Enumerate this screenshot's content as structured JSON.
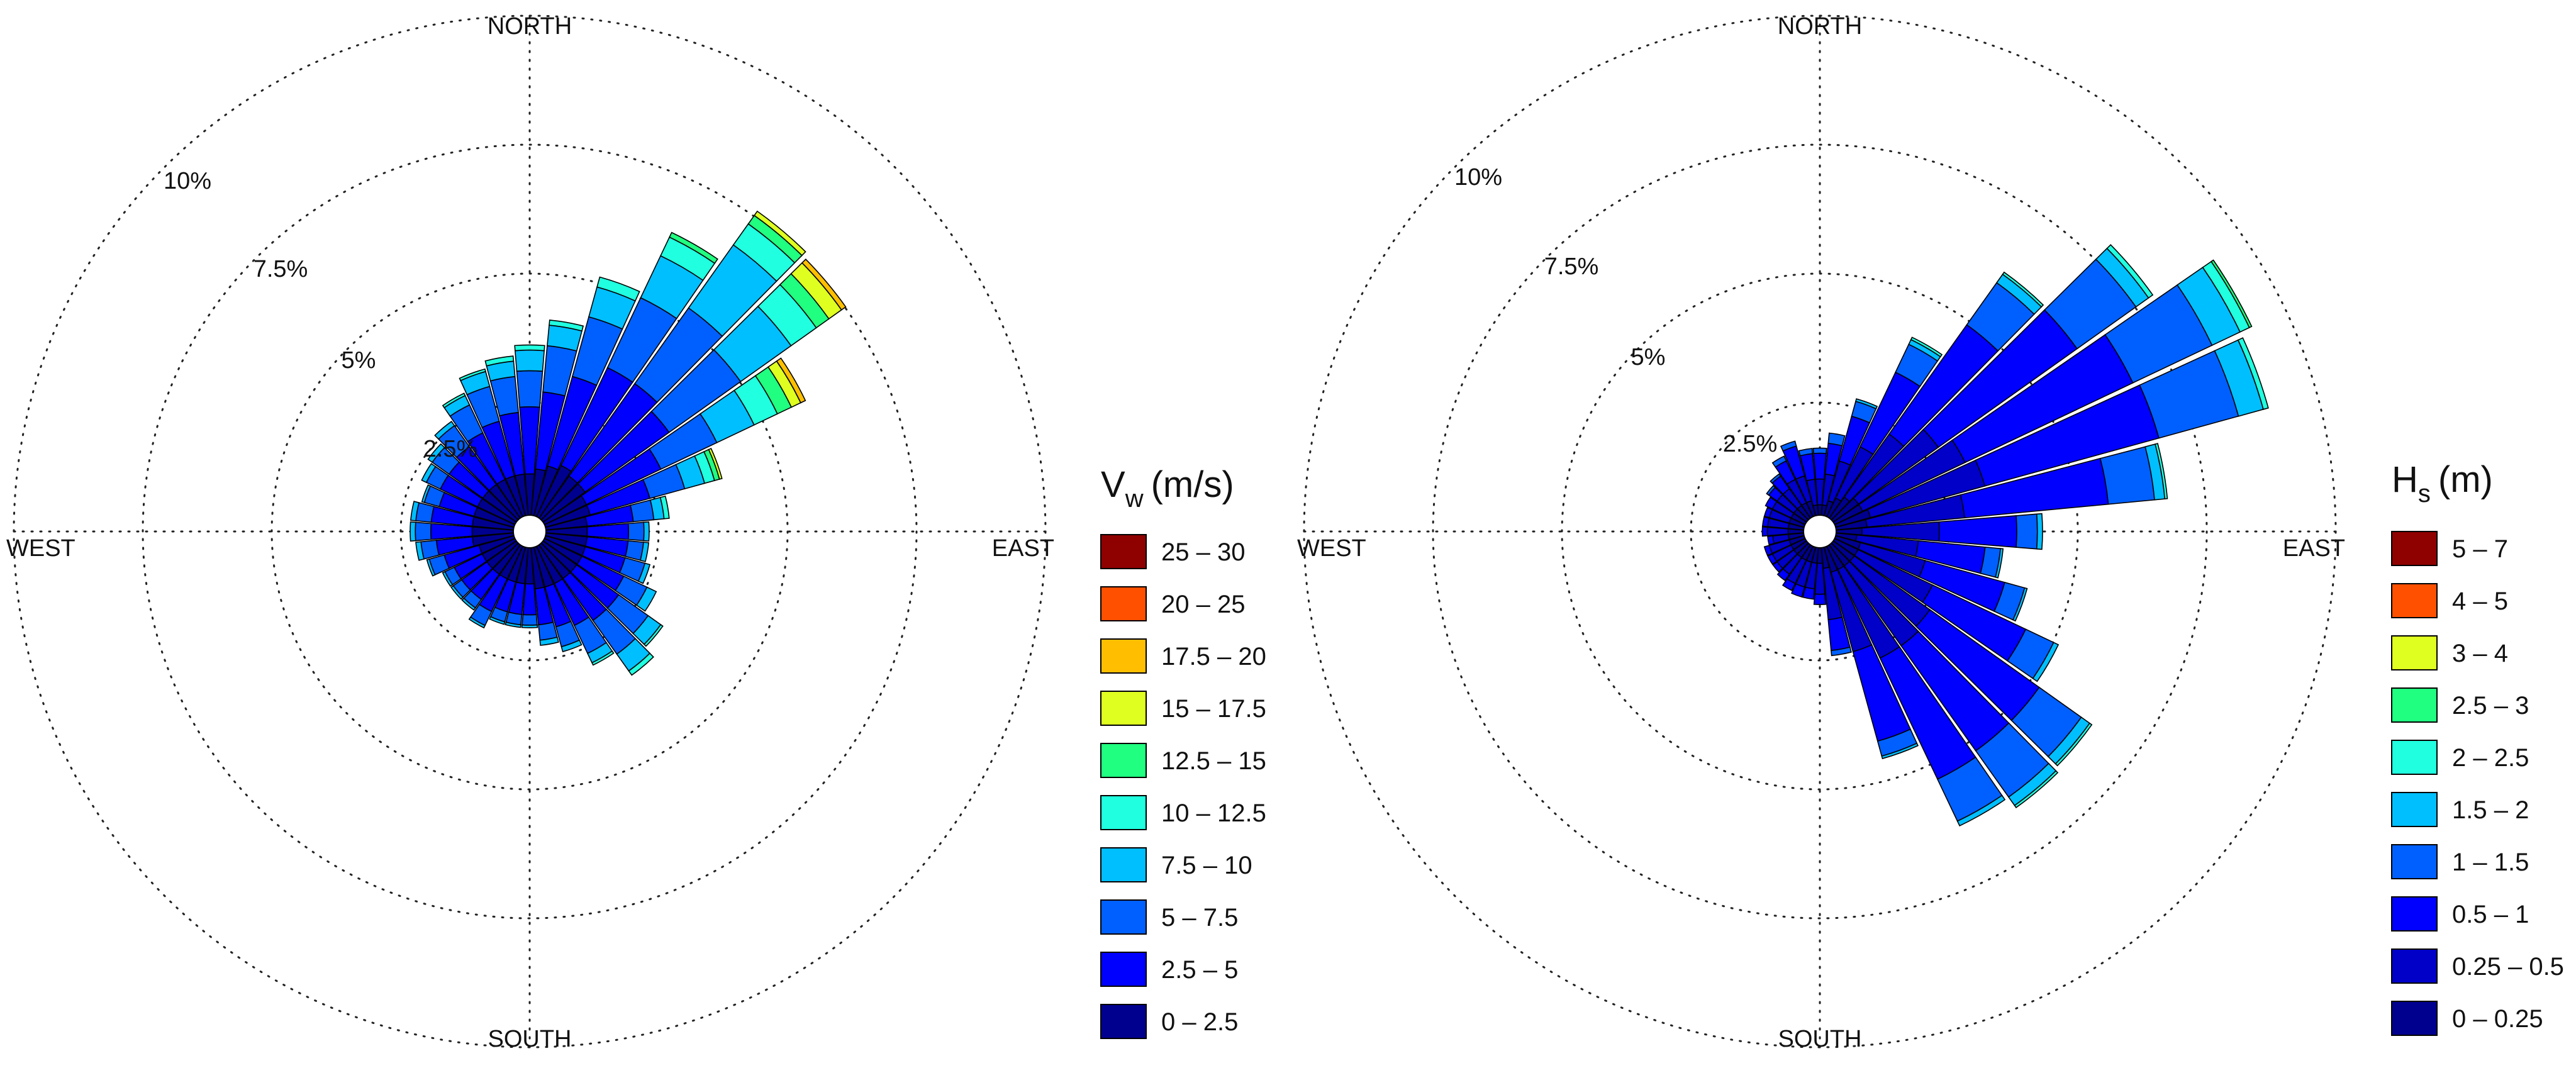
{
  "chart_data": [
    {
      "type": "windrose",
      "directions_deg": [
        0,
        10,
        20,
        30,
        40,
        50,
        60,
        70,
        80,
        90,
        100,
        110,
        120,
        130,
        140,
        150,
        160,
        170,
        180,
        190,
        200,
        210,
        220,
        230,
        240,
        250,
        260,
        270,
        280,
        290,
        300,
        310,
        320,
        330,
        340,
        350
      ],
      "compass_labels": {
        "north": "NORTH",
        "east": "EAST",
        "south": "SOUTH",
        "west": "WEST"
      },
      "radial_axis": {
        "unit": "%",
        "ticks": [
          2.5,
          5,
          7.5,
          10
        ],
        "tick_labels": [
          "2.5%",
          "5%",
          "7.5%",
          "10%"
        ],
        "max": 10,
        "grid": true
      },
      "legend": {
        "title_main": "V",
        "title_sub": "w",
        "title_unit": "(m/s)",
        "placement": "right",
        "bins": [
          {
            "label": "0 – 2.5",
            "color": "#00008F"
          },
          {
            "label": "2.5 – 5",
            "color": "#0000FF"
          },
          {
            "label": "5 – 7.5",
            "color": "#0060FF"
          },
          {
            "label": "7.5 – 10",
            "color": "#00BFFF"
          },
          {
            "label": "10 – 12.5",
            "color": "#20FFDF"
          },
          {
            "label": "12.5 – 15",
            "color": "#20FF80"
          },
          {
            "label": "15 – 17.5",
            "color": "#DFFF20"
          },
          {
            "label": "17.5 – 20",
            "color": "#FFBF00"
          },
          {
            "label": "20 – 25",
            "color": "#FF5000"
          },
          {
            "label": "25 – 30",
            "color": "#8F0000"
          }
        ]
      },
      "frequencies_percent": [
        [
          0.8,
          1.3,
          0.7,
          0.4,
          0.1,
          0,
          0,
          0,
          0,
          0
        ],
        [
          0.9,
          1.5,
          0.9,
          0.4,
          0.1,
          0,
          0,
          0,
          0,
          0
        ],
        [
          1.0,
          1.8,
          1.2,
          0.6,
          0.2,
          0,
          0,
          0,
          0,
          0
        ],
        [
          1.1,
          2.1,
          1.5,
          0.9,
          0.4,
          0.1,
          0,
          0,
          0,
          0
        ],
        [
          1.0,
          2.2,
          1.8,
          1.5,
          0.5,
          0.2,
          0.1,
          0,
          0,
          0
        ],
        [
          1.0,
          2.0,
          1.7,
          1.2,
          0.6,
          0.3,
          0.3,
          0.1,
          0,
          0
        ],
        [
          0.9,
          1.6,
          1.2,
          0.8,
          0.5,
          0.3,
          0.2,
          0.1,
          0,
          0
        ],
        [
          0.9,
          1.2,
          0.7,
          0.4,
          0.2,
          0.1,
          0.05,
          0,
          0,
          0
        ],
        [
          0.8,
          0.9,
          0.4,
          0.2,
          0.1,
          0,
          0,
          0,
          0,
          0
        ],
        [
          0.8,
          0.8,
          0.3,
          0.1,
          0,
          0,
          0,
          0,
          0,
          0
        ],
        [
          0.8,
          0.8,
          0.3,
          0.1,
          0,
          0,
          0,
          0,
          0,
          0
        ],
        [
          0.8,
          0.8,
          0.4,
          0.1,
          0,
          0,
          0,
          0,
          0,
          0
        ],
        [
          0.8,
          0.9,
          0.5,
          0.2,
          0,
          0,
          0,
          0,
          0,
          0
        ],
        [
          0.8,
          1.0,
          0.7,
          0.3,
          0.05,
          0,
          0,
          0,
          0,
          0
        ],
        [
          0.8,
          1.0,
          0.8,
          0.4,
          0.1,
          0,
          0,
          0,
          0,
          0
        ],
        [
          0.8,
          0.9,
          0.6,
          0.2,
          0.05,
          0,
          0,
          0,
          0,
          0
        ],
        [
          0.8,
          0.8,
          0.4,
          0.1,
          0,
          0,
          0,
          0,
          0,
          0
        ],
        [
          0.8,
          0.7,
          0.3,
          0.1,
          0,
          0,
          0,
          0,
          0,
          0
        ],
        [
          0.7,
          0.6,
          0.2,
          0.05,
          0,
          0,
          0,
          0,
          0,
          0
        ],
        [
          0.7,
          0.6,
          0.2,
          0.05,
          0,
          0,
          0,
          0,
          0,
          0
        ],
        [
          0.7,
          0.6,
          0.2,
          0.05,
          0,
          0,
          0,
          0,
          0,
          0
        ],
        [
          0.7,
          0.7,
          0.3,
          0.05,
          0,
          0,
          0,
          0,
          0,
          0
        ],
        [
          0.7,
          0.6,
          0.2,
          0.05,
          0,
          0,
          0,
          0,
          0,
          0
        ],
        [
          0.7,
          0.6,
          0.2,
          0.05,
          0,
          0,
          0,
          0,
          0,
          0
        ],
        [
          0.7,
          0.6,
          0.2,
          0.05,
          0,
          0,
          0,
          0,
          0,
          0
        ],
        [
          0.7,
          0.7,
          0.3,
          0.05,
          0,
          0,
          0,
          0,
          0,
          0
        ],
        [
          0.8,
          0.7,
          0.3,
          0.1,
          0,
          0,
          0,
          0,
          0,
          0
        ],
        [
          0.8,
          0.8,
          0.3,
          0.1,
          0,
          0,
          0,
          0,
          0,
          0
        ],
        [
          0.8,
          0.8,
          0.3,
          0.1,
          0,
          0,
          0,
          0,
          0,
          0
        ],
        [
          0.8,
          0.7,
          0.3,
          0.05,
          0,
          0,
          0,
          0,
          0,
          0
        ],
        [
          0.8,
          0.8,
          0.3,
          0.1,
          0,
          0,
          0,
          0,
          0,
          0
        ],
        [
          0.8,
          0.8,
          0.4,
          0.1,
          0,
          0,
          0,
          0,
          0,
          0
        ],
        [
          0.8,
          0.9,
          0.5,
          0.1,
          0,
          0,
          0,
          0,
          0,
          0
        ],
        [
          0.8,
          1.0,
          0.6,
          0.2,
          0.05,
          0,
          0,
          0,
          0,
          0
        ],
        [
          0.8,
          1.1,
          0.7,
          0.3,
          0.05,
          0,
          0,
          0,
          0,
          0
        ],
        [
          0.8,
          1.2,
          0.7,
          0.3,
          0.1,
          0,
          0,
          0,
          0,
          0
        ]
      ]
    },
    {
      "type": "windrose",
      "directions_deg": [
        0,
        10,
        20,
        30,
        40,
        50,
        60,
        70,
        80,
        90,
        100,
        110,
        120,
        130,
        140,
        150,
        160,
        170,
        180,
        190,
        200,
        210,
        220,
        230,
        240,
        250,
        260,
        270,
        280,
        290,
        300,
        310,
        320,
        330,
        340,
        350
      ],
      "compass_labels": {
        "north": "NORTH",
        "east": "EAST",
        "south": "SOUTH",
        "west": "WEST"
      },
      "radial_axis": {
        "unit": "%",
        "ticks": [
          2.5,
          5,
          7.5,
          10
        ],
        "tick_labels": [
          "2.5%",
          "5%",
          "7.5%",
          "10%"
        ],
        "max": 10,
        "grid": true
      },
      "legend": {
        "title_main": "H",
        "title_sub": "s",
        "title_unit": "(m)",
        "placement": "right",
        "bins": [
          {
            "label": "0 – 0.25",
            "color": "#00008F"
          },
          {
            "label": "0.25 – 0.5",
            "color": "#0000C8"
          },
          {
            "label": "0.5 – 1",
            "color": "#0000FF"
          },
          {
            "label": "1 – 1.5",
            "color": "#0060FF"
          },
          {
            "label": "1.5 – 2",
            "color": "#00BFFF"
          },
          {
            "label": "2 – 2.5",
            "color": "#20FFDF"
          },
          {
            "label": "2.5 – 3",
            "color": "#20FF80"
          },
          {
            "label": "3 – 4",
            "color": "#DFFF20"
          },
          {
            "label": "4 – 5",
            "color": "#FF5000"
          },
          {
            "label": "5 – 7",
            "color": "#8F0000"
          }
        ]
      },
      "frequencies_percent": [
        [
          0.2,
          0.5,
          0.5,
          0.1,
          0,
          0,
          0,
          0,
          0,
          0
        ],
        [
          0.2,
          0.6,
          0.6,
          0.2,
          0,
          0,
          0,
          0,
          0,
          0
        ],
        [
          0.3,
          0.8,
          0.9,
          0.3,
          0.05,
          0,
          0,
          0,
          0,
          0
        ],
        [
          0.4,
          1.1,
          1.6,
          0.6,
          0.1,
          0.05,
          0,
          0,
          0,
          0
        ],
        [
          0.5,
          1.5,
          2.6,
          1.0,
          0.2,
          0.05,
          0,
          0,
          0,
          0
        ],
        [
          0.6,
          1.9,
          3.3,
          1.4,
          0.3,
          0.1,
          0,
          0,
          0,
          0
        ],
        [
          0.6,
          2.2,
          3.6,
          1.7,
          0.6,
          0.2,
          0.05,
          0,
          0,
          0
        ],
        [
          0.7,
          2.3,
          3.5,
          1.6,
          0.5,
          0.1,
          0,
          0,
          0,
          0
        ],
        [
          0.6,
          1.9,
          2.8,
          0.9,
          0.2,
          0.05,
          0,
          0,
          0,
          0
        ],
        [
          0.5,
          1.5,
          1.5,
          0.4,
          0.1,
          0,
          0,
          0,
          0,
          0
        ],
        [
          0.4,
          1.2,
          1.3,
          0.3,
          0.05,
          0,
          0,
          0,
          0,
          0
        ],
        [
          0.5,
          1.3,
          1.6,
          0.4,
          0.05,
          0,
          0,
          0,
          0,
          0
        ],
        [
          0.5,
          1.6,
          2.0,
          0.6,
          0.1,
          0,
          0,
          0,
          0,
          0
        ],
        [
          0.5,
          1.8,
          2.6,
          1.0,
          0.2,
          0.05,
          0,
          0,
          0,
          0
        ],
        [
          0.5,
          1.9,
          2.5,
          1.1,
          0.2,
          0.05,
          0,
          0,
          0,
          0
        ],
        [
          0.5,
          1.9,
          2.6,
          0.9,
          0.1,
          0,
          0,
          0,
          0,
          0
        ],
        [
          0.5,
          1.6,
          1.8,
          0.3,
          0.05,
          0,
          0,
          0,
          0,
          0
        ],
        [
          0.4,
          1.0,
          0.6,
          0.1,
          0,
          0,
          0,
          0,
          0,
          0
        ],
        [
          0.3,
          0.6,
          0.2,
          0,
          0,
          0,
          0,
          0,
          0,
          0
        ],
        [
          0.3,
          0.5,
          0.2,
          0,
          0,
          0,
          0,
          0,
          0,
          0
        ],
        [
          0.3,
          0.5,
          0.2,
          0,
          0,
          0,
          0,
          0,
          0,
          0
        ],
        [
          0.3,
          0.5,
          0.15,
          0,
          0,
          0,
          0,
          0,
          0,
          0
        ],
        [
          0.3,
          0.4,
          0.15,
          0,
          0,
          0,
          0,
          0,
          0,
          0
        ],
        [
          0.3,
          0.4,
          0.1,
          0,
          0,
          0,
          0,
          0,
          0,
          0
        ],
        [
          0.3,
          0.4,
          0.1,
          0,
          0,
          0,
          0,
          0,
          0,
          0
        ],
        [
          0.3,
          0.4,
          0.1,
          0,
          0,
          0,
          0,
          0,
          0,
          0
        ],
        [
          0.3,
          0.3,
          0.1,
          0,
          0,
          0,
          0,
          0,
          0,
          0
        ],
        [
          0.3,
          0.4,
          0.1,
          0,
          0,
          0,
          0,
          0,
          0,
          0
        ],
        [
          0.3,
          0.4,
          0.1,
          0,
          0,
          0,
          0,
          0,
          0,
          0
        ],
        [
          0.3,
          0.4,
          0.1,
          0,
          0,
          0,
          0,
          0,
          0,
          0
        ],
        [
          0.3,
          0.4,
          0.15,
          0,
          0,
          0,
          0,
          0,
          0,
          0
        ],
        [
          0.3,
          0.4,
          0.2,
          0.05,
          0,
          0,
          0,
          0,
          0,
          0
        ],
        [
          0.3,
          0.4,
          0.3,
          0.05,
          0,
          0,
          0,
          0,
          0,
          0
        ],
        [
          0.3,
          0.5,
          0.4,
          0.1,
          0,
          0,
          0,
          0,
          0,
          0
        ],
        [
          0.3,
          0.5,
          0.6,
          0.1,
          0,
          0,
          0,
          0,
          0,
          0
        ],
        [
          0.2,
          0.5,
          0.5,
          0.1,
          0,
          0,
          0,
          0,
          0,
          0
        ]
      ]
    }
  ]
}
